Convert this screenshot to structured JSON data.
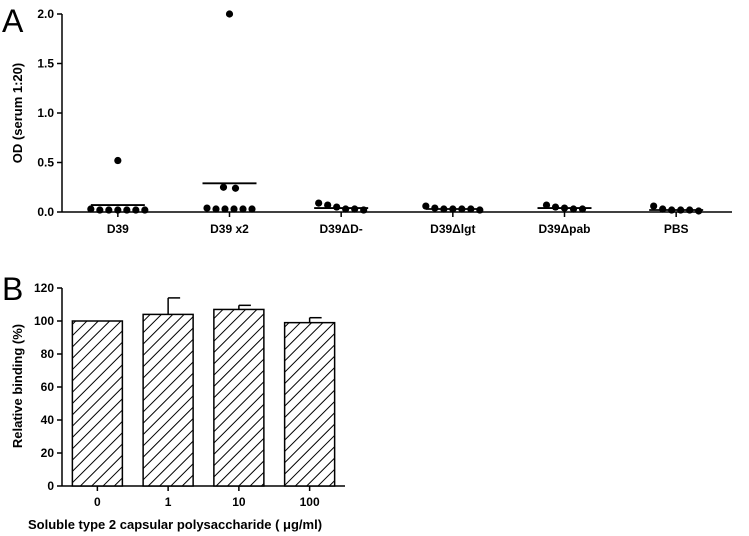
{
  "panels": {
    "a_letter": "A",
    "b_letter": "B"
  },
  "chart_data": [
    {
      "type": "scatter",
      "panel": "A",
      "ylabel": "OD (serum 1:20)",
      "xlabel": "",
      "ylim": [
        0,
        2.0
      ],
      "yticks": [
        "0.0",
        "0.5",
        "1.0",
        "1.5",
        "2.0"
      ],
      "ytick_values": [
        0,
        0.5,
        1.0,
        1.5,
        2.0
      ],
      "categories": [
        "D39",
        "D39 x2",
        "D39ΔD-",
        "D39Δlgt",
        "D39Δpab",
        "PBS"
      ],
      "groups": [
        {
          "category": "D39",
          "points": [
            0.52,
            0.03,
            0.02,
            0.02,
            0.02,
            0.02,
            0.02,
            0.02
          ],
          "mean": 0.07
        },
        {
          "category": "D39 x2",
          "points": [
            2.0,
            0.25,
            0.24,
            0.04,
            0.03,
            0.03,
            0.03,
            0.03,
            0.03
          ],
          "mean": 0.29
        },
        {
          "category": "D39ΔD-",
          "points": [
            0.09,
            0.07,
            0.05,
            0.03,
            0.03,
            0.02
          ],
          "mean": 0.04
        },
        {
          "category": "D39Δlgt",
          "points": [
            0.06,
            0.04,
            0.03,
            0.03,
            0.03,
            0.03,
            0.02
          ],
          "mean": 0.03
        },
        {
          "category": "D39Δpab",
          "points": [
            0.07,
            0.05,
            0.04,
            0.03,
            0.03
          ],
          "mean": 0.04
        },
        {
          "category": "PBS",
          "points": [
            0.06,
            0.03,
            0.02,
            0.02,
            0.02,
            0.01
          ],
          "mean": 0.02
        }
      ]
    },
    {
      "type": "bar",
      "panel": "B",
      "ylabel": "Relative binding (%)",
      "xlabel": "Soluble type 2 capsular polysaccharide ( μg/ml)",
      "ylim": [
        0,
        120
      ],
      "yticks": [
        "0",
        "20",
        "40",
        "60",
        "80",
        "100",
        "120"
      ],
      "ytick_values": [
        0,
        20,
        40,
        60,
        80,
        100,
        120
      ],
      "categories": [
        "0",
        "1",
        "10",
        "100"
      ],
      "values": [
        100,
        104,
        107,
        99
      ],
      "errors": [
        0,
        10,
        2.5,
        3
      ],
      "fill": "diagonal-hatch"
    }
  ]
}
